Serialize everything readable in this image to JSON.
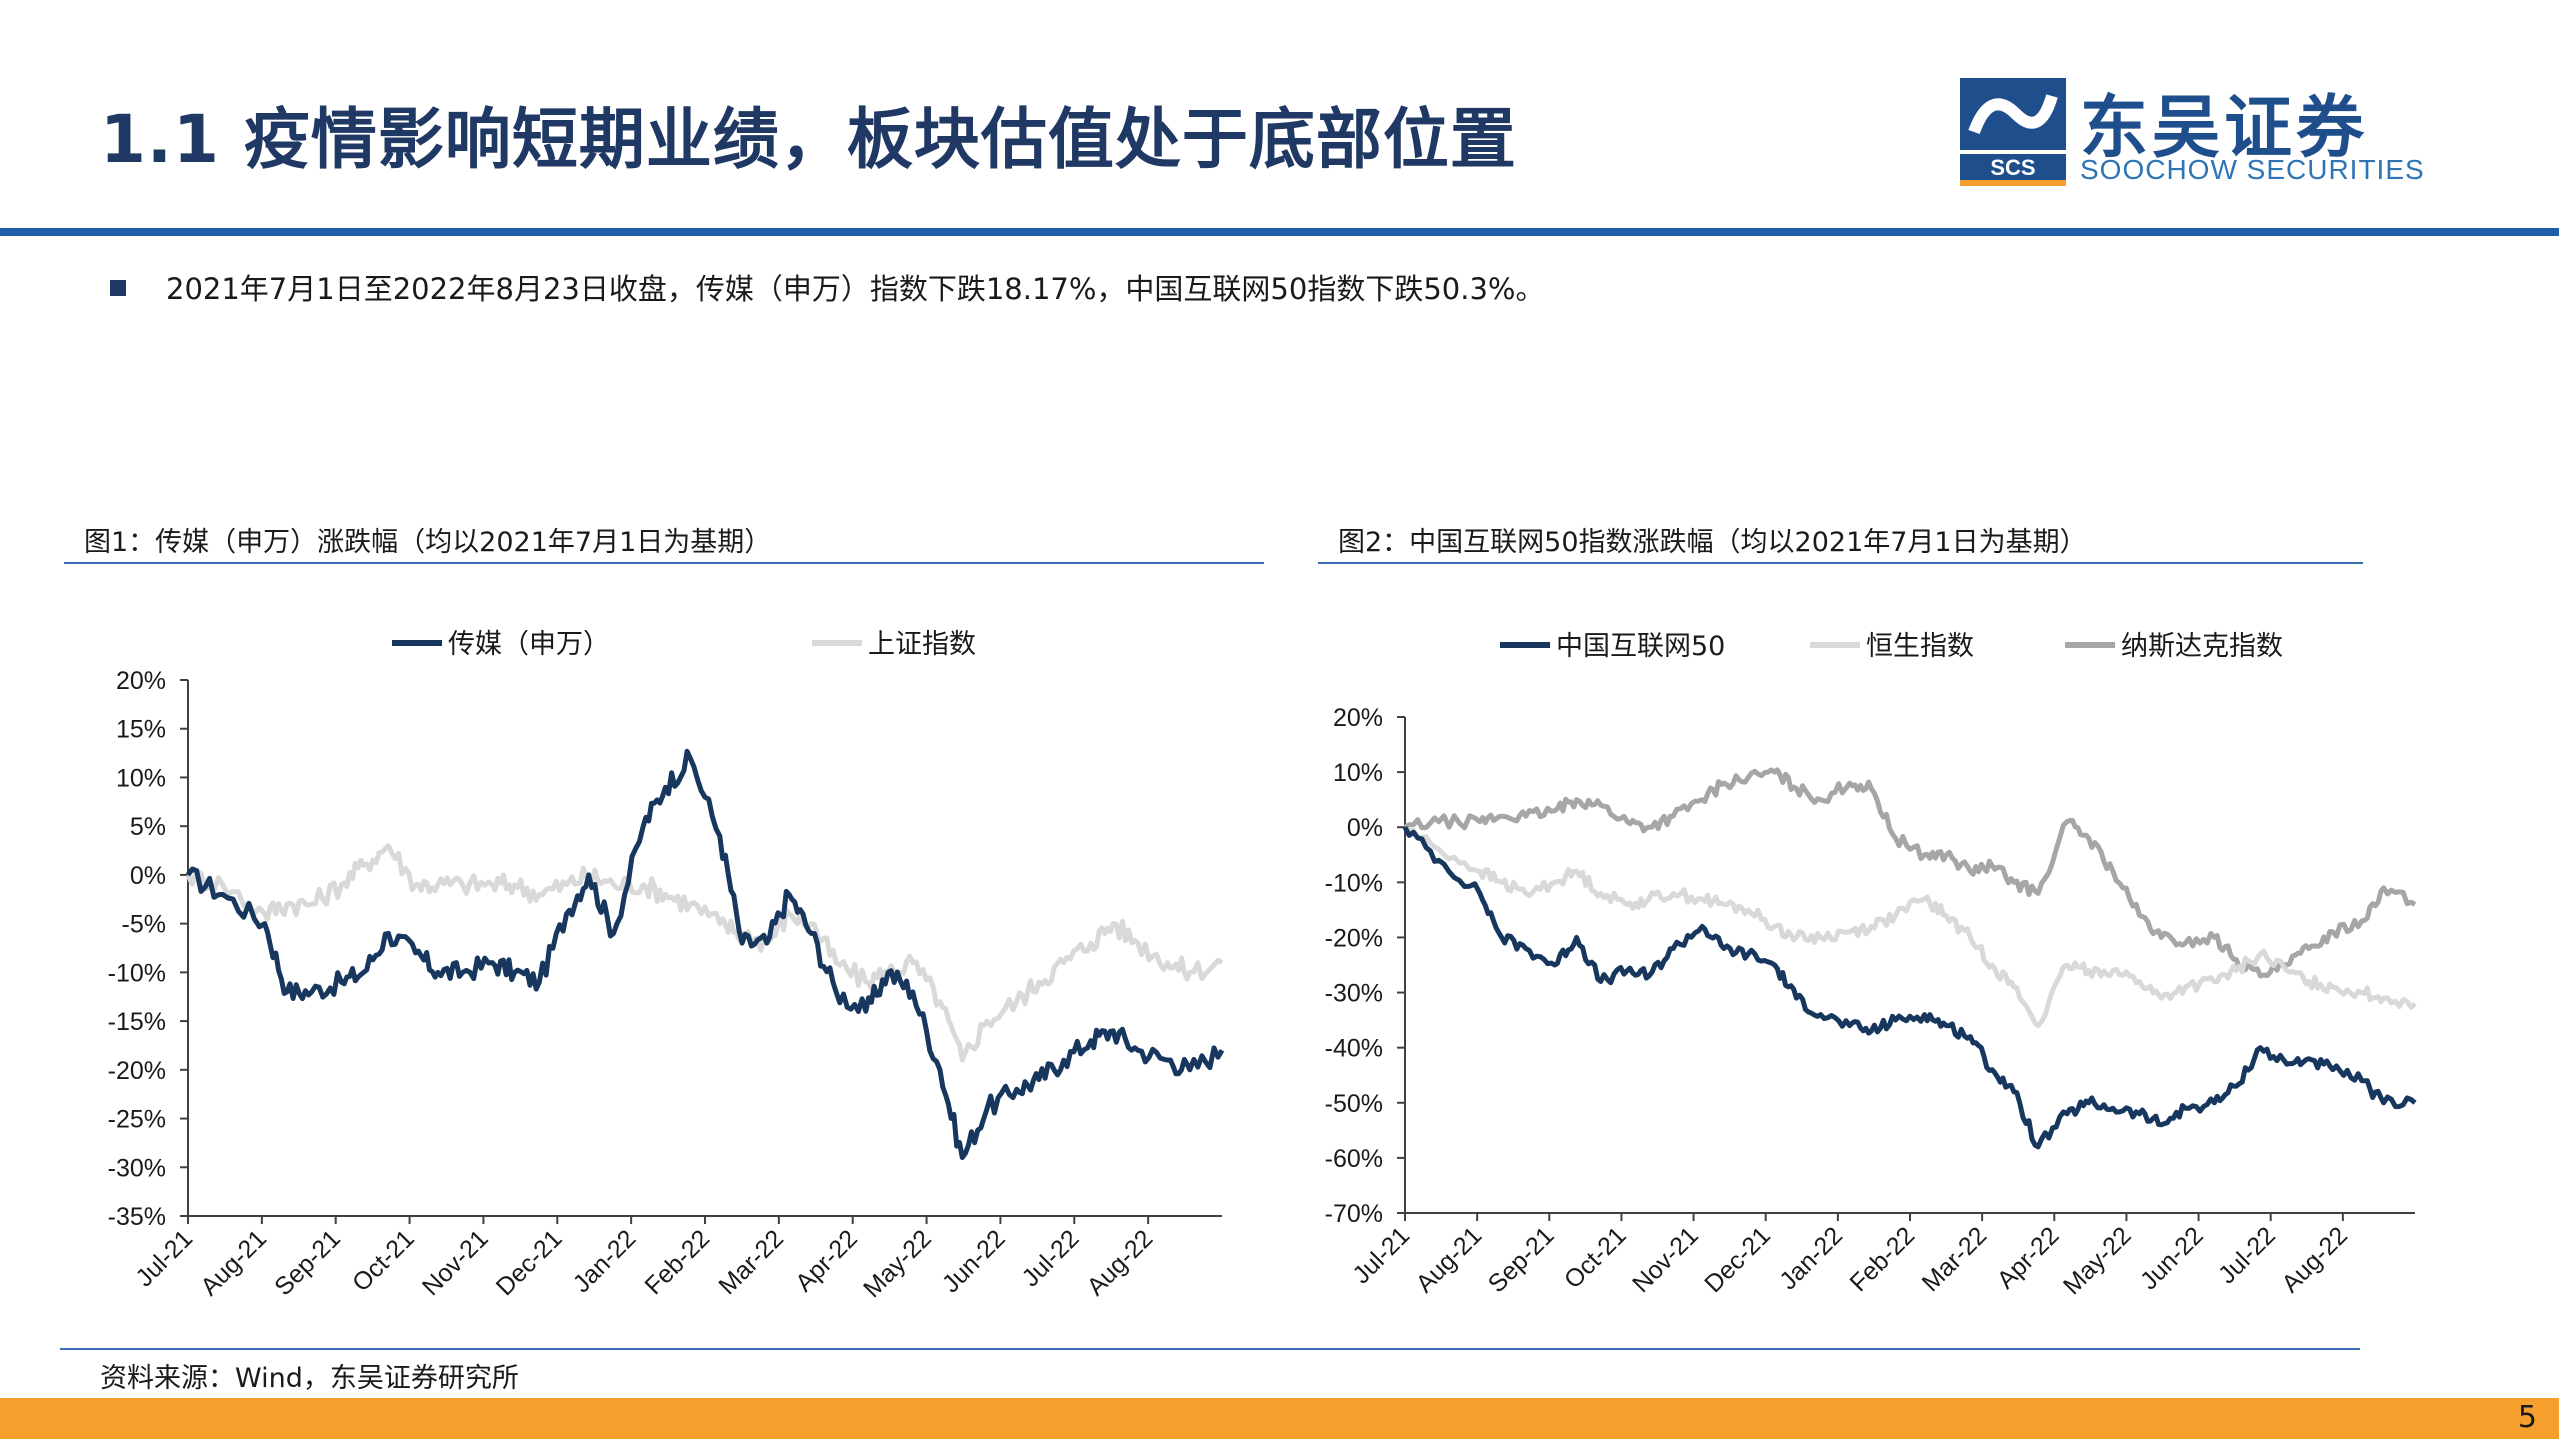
{
  "header": {
    "title": "1.1 疫情影响短期业绩，板块估值处于底部位置",
    "logo_name": "东吴证券",
    "logo_sub": "SOOCHOW SECURITIES",
    "logo_mark_text": "SCS"
  },
  "bullet": "2021年7月1日至2022年8月23日收盘，传媒（申万）指数下跌18.17%，中国互联网50指数下跌50.3%。",
  "figure1_title": "图1：传媒（申万）涨跌幅（均以2021年7月1日为基期）",
  "figure2_title": "图2：中国互联网50指数涨跌幅（均以2021年7月1日为基期）",
  "source": "资料来源：Wind，东吴证券研究所",
  "page_number": "5",
  "colors": {
    "dark_navy": "#17375e",
    "light_gray": "#d9d9d9",
    "mid_gray": "#a6a6a6",
    "accent_blue": "#1f5fa8",
    "orange": "#f5a02c"
  },
  "chart_data": [
    {
      "type": "line",
      "title": "",
      "x_ticks": [
        "Jul-21",
        "Aug-21",
        "Sep-21",
        "Oct-21",
        "Nov-21",
        "Dec-21",
        "Jan-22",
        "Feb-22",
        "Mar-22",
        "Apr-22",
        "May-22",
        "Jun-22",
        "Jul-22",
        "Aug-22"
      ],
      "y_ticks": [
        "20%",
        "15%",
        "10%",
        "5%",
        "0%",
        "-5%",
        "-10%",
        "-15%",
        "-20%",
        "-25%",
        "-30%",
        "-35%"
      ],
      "ylim": [
        -35,
        20
      ],
      "x": [
        "2021-07-01",
        "2021-07-15",
        "2021-08-01",
        "2021-08-10",
        "2021-08-20",
        "2021-09-01",
        "2021-09-10",
        "2021-09-20",
        "2021-10-01",
        "2021-10-10",
        "2021-10-20",
        "2021-11-01",
        "2021-11-10",
        "2021-11-20",
        "2021-12-01",
        "2021-12-10",
        "2021-12-20",
        "2022-01-01",
        "2022-01-10",
        "2022-01-20",
        "2022-02-01",
        "2022-02-10",
        "2022-02-20",
        "2022-03-01",
        "2022-03-10",
        "2022-03-20",
        "2022-04-01",
        "2022-04-10",
        "2022-04-20",
        "2022-05-01",
        "2022-05-10",
        "2022-05-20",
        "2022-06-01",
        "2022-06-10",
        "2022-06-20",
        "2022-07-01",
        "2022-07-10",
        "2022-07-20",
        "2022-08-01",
        "2022-08-10",
        "2022-08-23"
      ],
      "series": [
        {
          "name": "传媒（申万）",
          "values": [
            0,
            -2,
            -5,
            -12,
            -12,
            -11,
            -10,
            -6,
            -8,
            -10,
            -10,
            -9,
            -10,
            -11,
            -4,
            0,
            -6,
            5,
            9,
            12,
            4,
            -7,
            -7,
            -2,
            -6,
            -12,
            -14,
            -10,
            -12,
            -20,
            -29,
            -24,
            -22,
            -21,
            -19,
            -17,
            -16,
            -18,
            -19,
            -20,
            -18
          ]
        },
        {
          "name": "上证指数",
          "values": [
            0,
            -1,
            -4,
            -3,
            -3,
            -1,
            1,
            3,
            -1,
            -1,
            -1,
            -1,
            -1,
            -2,
            -1,
            0,
            -1,
            -1,
            -2,
            -3,
            -5,
            -6,
            -7,
            -4,
            -5,
            -9,
            -11,
            -10,
            -9,
            -13,
            -19,
            -15,
            -13,
            -11,
            -9,
            -7,
            -5,
            -7,
            -9,
            -10,
            -9
          ]
        }
      ]
    },
    {
      "type": "line",
      "title": "",
      "x_ticks": [
        "Jul-21",
        "Aug-21",
        "Sep-21",
        "Oct-21",
        "Nov-21",
        "Dec-21",
        "Jan-22",
        "Feb-22",
        "Mar-22",
        "Apr-22",
        "May-22",
        "Jun-22",
        "Jul-22",
        "Aug-22"
      ],
      "y_ticks": [
        "20%",
        "10%",
        "0%",
        "-10%",
        "-20%",
        "-30%",
        "-40%",
        "-50%",
        "-60%",
        "-70%"
      ],
      "ylim": [
        -70,
        20
      ],
      "x": [
        "2021-07-01",
        "2021-07-15",
        "2021-08-01",
        "2021-08-10",
        "2021-08-20",
        "2021-09-01",
        "2021-09-10",
        "2021-09-20",
        "2021-10-01",
        "2021-10-10",
        "2021-10-20",
        "2021-11-01",
        "2021-11-10",
        "2021-11-20",
        "2021-12-01",
        "2021-12-10",
        "2021-12-20",
        "2022-01-01",
        "2022-01-10",
        "2022-01-20",
        "2022-02-01",
        "2022-02-10",
        "2022-02-20",
        "2022-03-01",
        "2022-03-10",
        "2022-03-20",
        "2022-04-01",
        "2022-04-10",
        "2022-04-20",
        "2022-05-01",
        "2022-05-10",
        "2022-05-20",
        "2022-06-01",
        "2022-06-10",
        "2022-06-20",
        "2022-07-01",
        "2022-07-10",
        "2022-07-20",
        "2022-08-01",
        "2022-08-10",
        "2022-08-23"
      ],
      "series": [
        {
          "name": "中国互联网50",
          "values": [
            0,
            -6,
            -12,
            -20,
            -22,
            -25,
            -20,
            -28,
            -26,
            -27,
            -22,
            -18,
            -22,
            -23,
            -25,
            -31,
            -34,
            -36,
            -37,
            -35,
            -34,
            -36,
            -38,
            -44,
            -48,
            -58,
            -52,
            -50,
            -51,
            -52,
            -54,
            -51,
            -50,
            -47,
            -40,
            -43,
            -42,
            -44,
            -46,
            -50,
            -50
          ]
        },
        {
          "name": "恒生指数",
          "values": [
            0,
            -4,
            -8,
            -10,
            -12,
            -10,
            -8,
            -12,
            -14,
            -13,
            -12,
            -13,
            -14,
            -15,
            -18,
            -20,
            -20,
            -19,
            -18,
            -16,
            -13,
            -16,
            -20,
            -25,
            -29,
            -36,
            -25,
            -26,
            -26,
            -28,
            -31,
            -29,
            -28,
            -26,
            -23,
            -26,
            -28,
            -29,
            -30,
            -31,
            -32
          ]
        },
        {
          "name": "纳斯达克指数",
          "values": [
            0,
            1,
            1,
            2,
            2,
            3,
            5,
            4,
            1,
            0,
            2,
            5,
            8,
            9,
            10,
            7,
            5,
            8,
            7,
            -2,
            -5,
            -5,
            -8,
            -7,
            -10,
            -12,
            1,
            -2,
            -8,
            -16,
            -20,
            -21,
            -20,
            -24,
            -27,
            -25,
            -22,
            -19,
            -17,
            -11,
            -14
          ]
        }
      ]
    }
  ]
}
